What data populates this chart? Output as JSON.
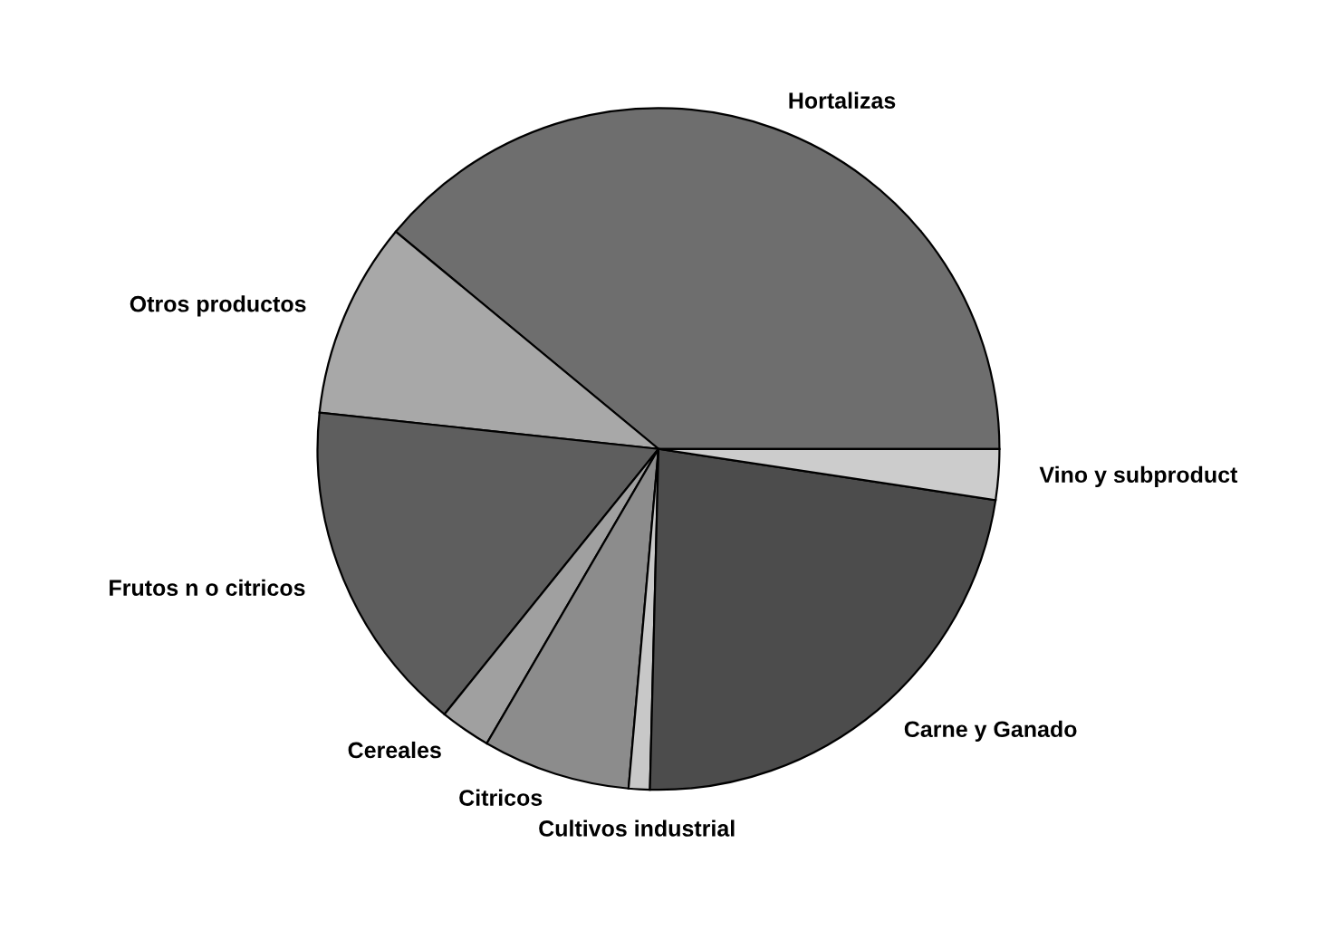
{
  "chart_data": {
    "type": "pie",
    "categories": [
      "Hortalizas",
      "Otros productos",
      "Frutos n o citricos",
      "Cereales",
      "Citricos",
      "Cultivos industrial",
      "Carne y Ganado",
      "Vino y subproduct"
    ],
    "values": [
      39.0,
      9.3,
      15.9,
      2.4,
      7.0,
      1.0,
      23.0,
      2.4
    ],
    "colors": [
      "#6e6e6e",
      "#a8a8a8",
      "#5e5e5e",
      "#a0a0a0",
      "#8c8c8c",
      "#c8c8c8",
      "#4c4c4c",
      "#cccccc"
    ]
  }
}
